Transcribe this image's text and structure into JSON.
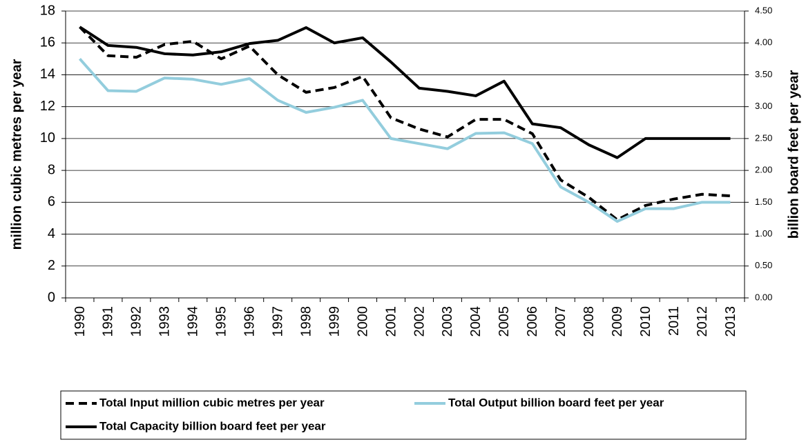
{
  "chart_data": {
    "type": "line",
    "categories": [
      "1990",
      "1991",
      "1992",
      "1993",
      "1994",
      "1995",
      "1996",
      "1997",
      "1998",
      "1999",
      "2000",
      "2001",
      "2002",
      "2003",
      "2004",
      "2005",
      "2006",
      "2007",
      "2008",
      "2009",
      "2010",
      "2011",
      "2012",
      "2013"
    ],
    "y_label": "million cubic metres per year",
    "y2_label": "billion board feet per year",
    "ylim": [
      0,
      18
    ],
    "yticks": [
      0,
      2,
      4,
      6,
      8,
      10,
      12,
      14,
      16,
      18
    ],
    "y2lim": [
      0,
      4.5
    ],
    "y2ticks": [
      {
        "value": 0,
        "label": "0.00"
      },
      {
        "value": 0.5,
        "label": "0.50"
      },
      {
        "value": 1,
        "label": "1.00"
      },
      {
        "value": 1.5,
        "label": "1.50"
      },
      {
        "value": 2,
        "label": "2.00"
      },
      {
        "value": 2.5,
        "label": "2.50"
      },
      {
        "value": 3,
        "label": "3.00"
      },
      {
        "value": 3.5,
        "label": "3.50"
      },
      {
        "value": 4,
        "label": "4.00"
      },
      {
        "value": 4.5,
        "label": "4.50"
      }
    ],
    "grid": true,
    "legend": "bottom",
    "series": [
      {
        "name": "Total Input million cubic metres per year",
        "color": "#000000",
        "dashed": true,
        "values": [
          17.0,
          15.2,
          15.1,
          15.9,
          16.1,
          15.0,
          15.8,
          14.0,
          12.9,
          13.2,
          13.9,
          11.3,
          10.6,
          10.1,
          11.2,
          11.2,
          10.3,
          7.4,
          6.3,
          4.9,
          5.8,
          6.2,
          6.5,
          6.4
        ]
      },
      {
        "name": "Total Output billion board feet per year",
        "color": "#93cddd",
        "axis": "y2",
        "values": [
          3.75,
          3.25,
          3.24,
          3.45,
          3.43,
          3.35,
          3.44,
          3.1,
          2.91,
          2.99,
          3.1,
          2.5,
          2.42,
          2.34,
          2.58,
          2.59,
          2.42,
          1.74,
          1.5,
          1.2,
          1.4,
          1.4,
          1.5,
          1.5
        ]
      },
      {
        "name": "Total Capacity billion board feet per year",
        "color": "#000000",
        "axis": "y2",
        "values": [
          4.25,
          3.96,
          3.93,
          3.83,
          3.81,
          3.86,
          3.99,
          4.04,
          4.24,
          4.0,
          4.08,
          3.7,
          3.29,
          3.24,
          3.17,
          3.4,
          2.73,
          2.67,
          2.4,
          2.2,
          2.5,
          2.5,
          2.5,
          2.5
        ]
      }
    ]
  }
}
